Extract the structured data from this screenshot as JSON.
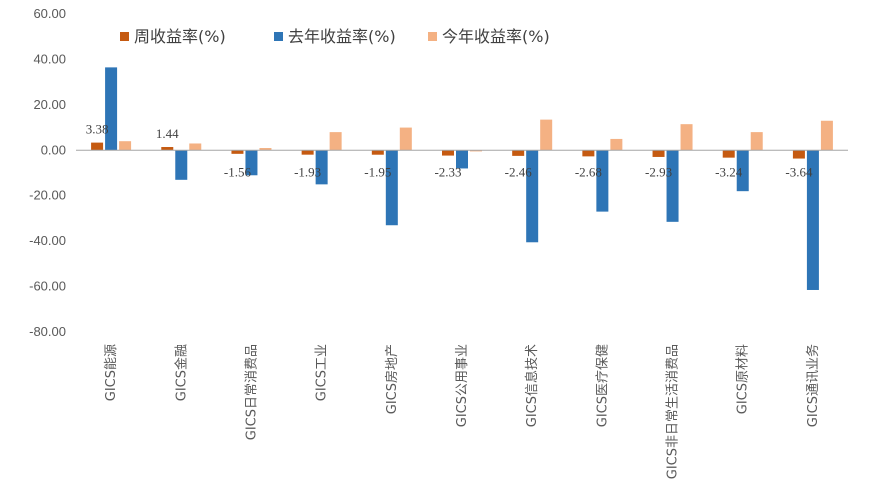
{
  "chart_data": {
    "type": "bar",
    "title": "",
    "xlabel": "",
    "ylabel": "",
    "ylim": [
      -80,
      60
    ],
    "yticks": [
      60,
      40,
      20,
      0,
      -20,
      -40,
      -60,
      -80
    ],
    "ytick_labels": [
      "60.00",
      "40.00",
      "20.00",
      "0.00",
      "-20.00",
      "-40.00",
      "-60.00",
      "-80.00"
    ],
    "grid": false,
    "legend_position": "top",
    "categories": [
      "GICS能源",
      "GICS金融",
      "GICS日常消费品",
      "GICS工业",
      "GICS房地产",
      "GICS公用事业",
      "GICS信息技术",
      "GICS医疗保健",
      "GICS非日常生活消费品",
      "GICS原材料",
      "GICS通讯业务"
    ],
    "series": [
      {
        "name": "周收益率(%)",
        "color": "#C55A11",
        "values": [
          3.38,
          1.44,
          -1.56,
          -1.93,
          -1.95,
          -2.33,
          -2.46,
          -2.68,
          -2.93,
          -3.24,
          -3.64
        ],
        "data_labels": [
          "3.38",
          "1.44",
          "-1.56",
          "-1.93",
          "-1.95",
          "-2.33",
          "-2.46",
          "-2.68",
          "-2.93",
          "-3.24",
          "-3.64"
        ]
      },
      {
        "name": "去年收益率(%)",
        "color": "#2E75B6",
        "values": [
          36.5,
          -13,
          -11,
          -15,
          -33,
          -8,
          -40.5,
          -27,
          -31.5,
          -18,
          -61.5
        ]
      },
      {
        "name": "今年收益率(%)",
        "color": "#F4B183",
        "values": [
          4,
          3,
          1,
          8,
          10,
          -0.5,
          13.5,
          5,
          11.5,
          8,
          13
        ]
      }
    ]
  }
}
